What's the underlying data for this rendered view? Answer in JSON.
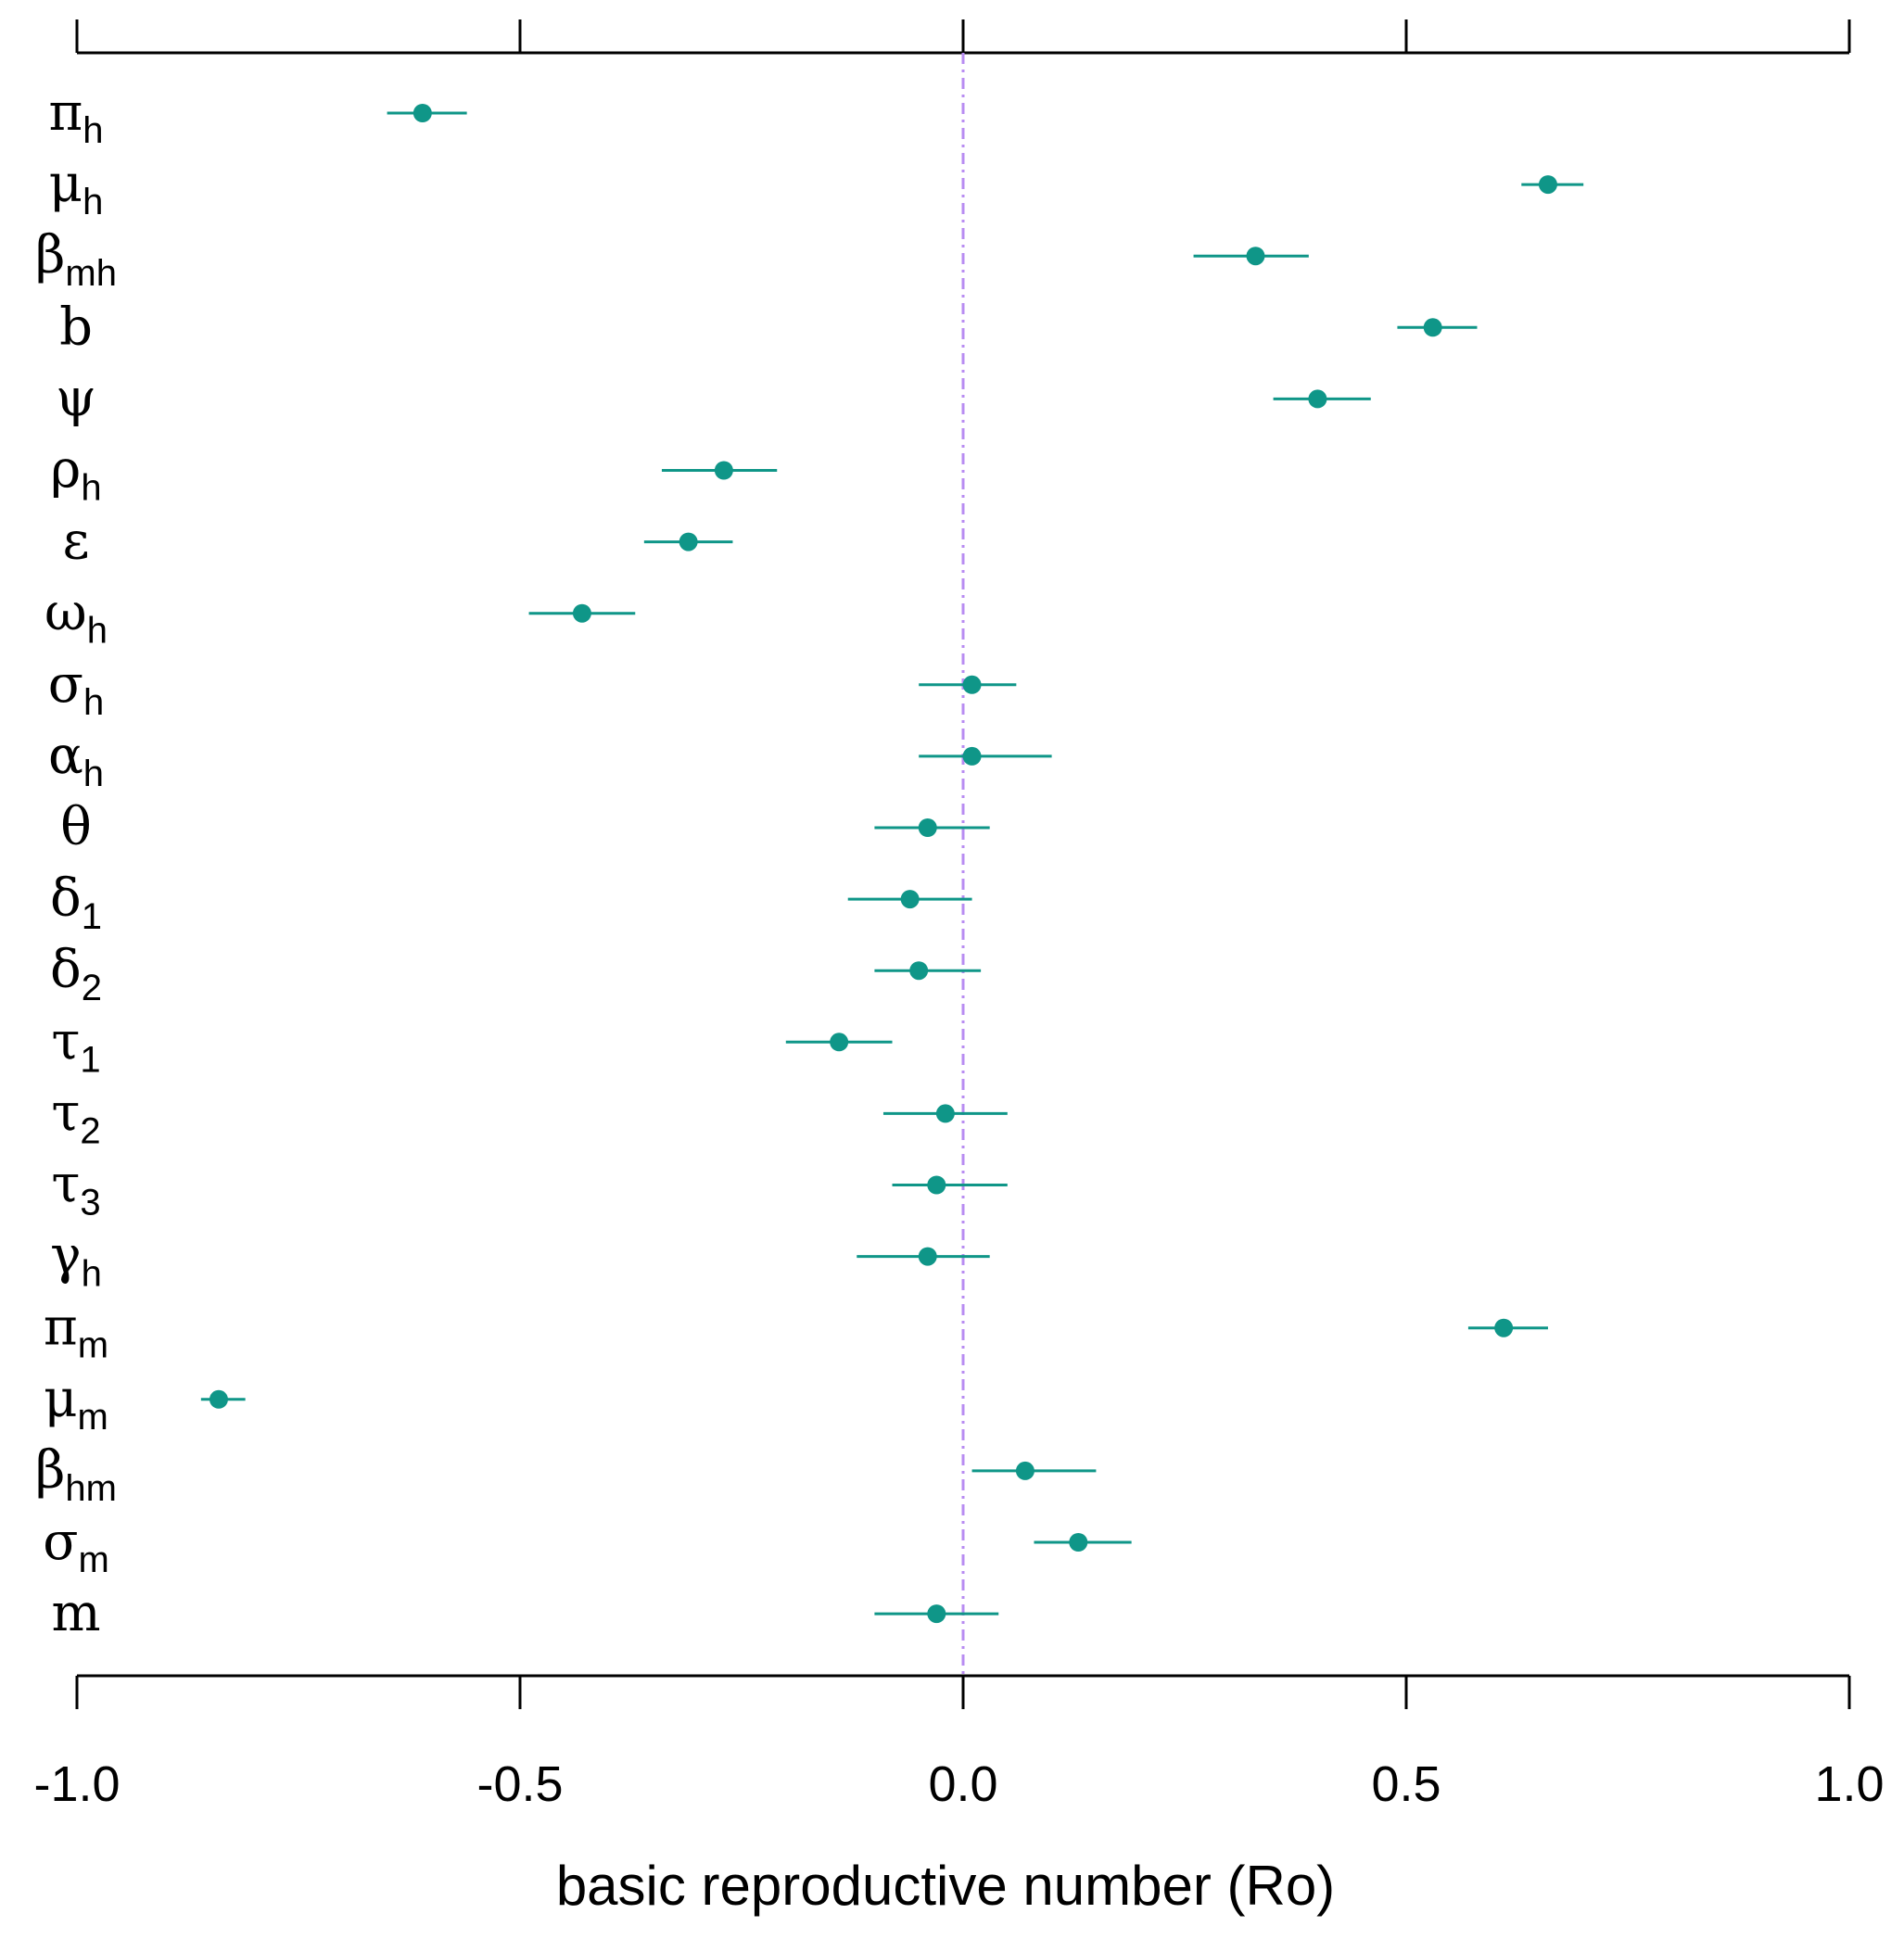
{
  "chart_data": {
    "type": "forest",
    "title": "",
    "xlabel": "basic reproductive number (Ro)",
    "ylabel": "",
    "xlim": [
      -1.0,
      1.0
    ],
    "x_ticks": [
      -1.0,
      -0.5,
      0.0,
      0.5,
      1.0
    ],
    "x_tick_labels": [
      "-1.0",
      "-0.5",
      "0.0",
      "0.5",
      "1.0"
    ],
    "reference_line": 0.0,
    "colors": {
      "point": "#0f9688",
      "reference": "#b88cf2",
      "axis": "#000000"
    },
    "parameters": [
      {
        "symbol": "π",
        "sub": "h",
        "value": -0.61,
        "lower": -0.65,
        "upper": -0.56
      },
      {
        "symbol": "μ",
        "sub": "h",
        "value": 0.66,
        "lower": 0.63,
        "upper": 0.7
      },
      {
        "symbol": "β",
        "sub": "mh",
        "value": 0.33,
        "lower": 0.26,
        "upper": 0.39
      },
      {
        "symbol": "b",
        "sub": "",
        "value": 0.53,
        "lower": 0.49,
        "upper": 0.58
      },
      {
        "symbol": "ψ",
        "sub": "",
        "value": 0.4,
        "lower": 0.35,
        "upper": 0.46
      },
      {
        "symbol": "ρ",
        "sub": "h",
        "value": -0.27,
        "lower": -0.34,
        "upper": -0.21
      },
      {
        "symbol": "ε",
        "sub": "",
        "value": -0.31,
        "lower": -0.36,
        "upper": -0.26
      },
      {
        "symbol": "ω",
        "sub": "h",
        "value": -0.43,
        "lower": -0.49,
        "upper": -0.37
      },
      {
        "symbol": "σ",
        "sub": "h",
        "value": 0.01,
        "lower": -0.05,
        "upper": 0.06
      },
      {
        "symbol": "α",
        "sub": "h",
        "value": 0.01,
        "lower": -0.05,
        "upper": 0.1
      },
      {
        "symbol": "θ",
        "sub": "",
        "value": -0.04,
        "lower": -0.1,
        "upper": 0.03
      },
      {
        "symbol": "δ",
        "sub": "1",
        "value": -0.06,
        "lower": -0.13,
        "upper": 0.01
      },
      {
        "symbol": "δ",
        "sub": "2",
        "value": -0.05,
        "lower": -0.1,
        "upper": 0.02
      },
      {
        "symbol": "τ",
        "sub": "1",
        "value": -0.14,
        "lower": -0.2,
        "upper": -0.08
      },
      {
        "symbol": "τ",
        "sub": "2",
        "value": -0.02,
        "lower": -0.09,
        "upper": 0.05
      },
      {
        "symbol": "τ",
        "sub": "3",
        "value": -0.03,
        "lower": -0.08,
        "upper": 0.05
      },
      {
        "symbol": "γ",
        "sub": "h",
        "value": -0.04,
        "lower": -0.12,
        "upper": 0.03
      },
      {
        "symbol": "π",
        "sub": "m",
        "value": 0.61,
        "lower": 0.57,
        "upper": 0.66
      },
      {
        "symbol": "μ",
        "sub": "m",
        "value": -0.84,
        "lower": -0.86,
        "upper": -0.81
      },
      {
        "symbol": "β",
        "sub": "hm",
        "value": 0.07,
        "lower": 0.01,
        "upper": 0.15
      },
      {
        "symbol": "σ",
        "sub": "m",
        "value": 0.13,
        "lower": 0.08,
        "upper": 0.19
      },
      {
        "symbol": "m",
        "sub": "",
        "value": -0.03,
        "lower": -0.1,
        "upper": 0.04
      }
    ]
  }
}
